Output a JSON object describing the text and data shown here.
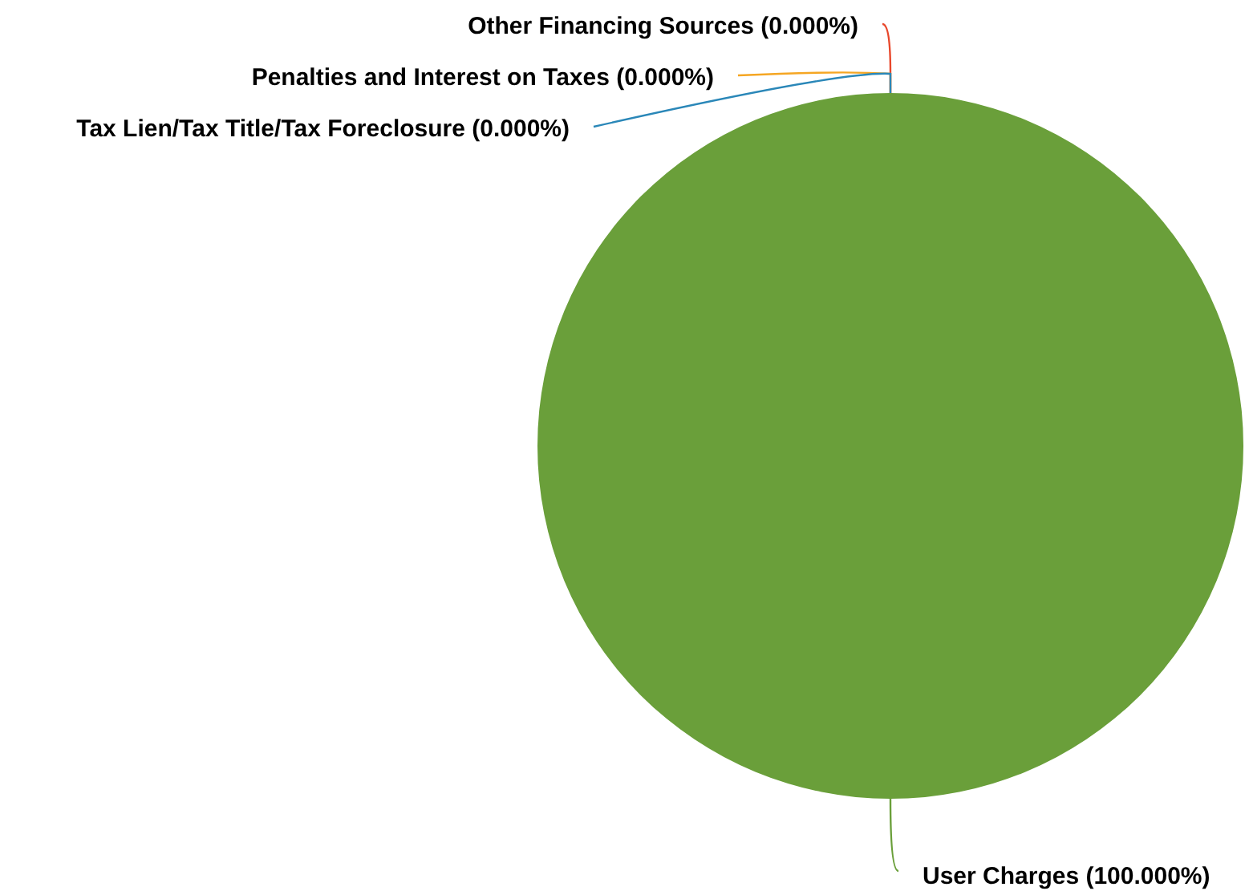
{
  "chart_data": {
    "type": "pie",
    "categories": [
      "Other Financing Sources",
      "Penalties and Interest on Taxes",
      "Tax Lien/Tax Title/Tax Foreclosure",
      "User Charges"
    ],
    "values": [
      0,
      0,
      0,
      100
    ],
    "value_labels": [
      "(0.000%)",
      "(0.000%)",
      "(0.000%)",
      "(100.000%)"
    ],
    "colors": [
      "#e8472b",
      "#f5a623",
      "#2a87b8",
      "#6a9f3a"
    ],
    "legend": false
  }
}
